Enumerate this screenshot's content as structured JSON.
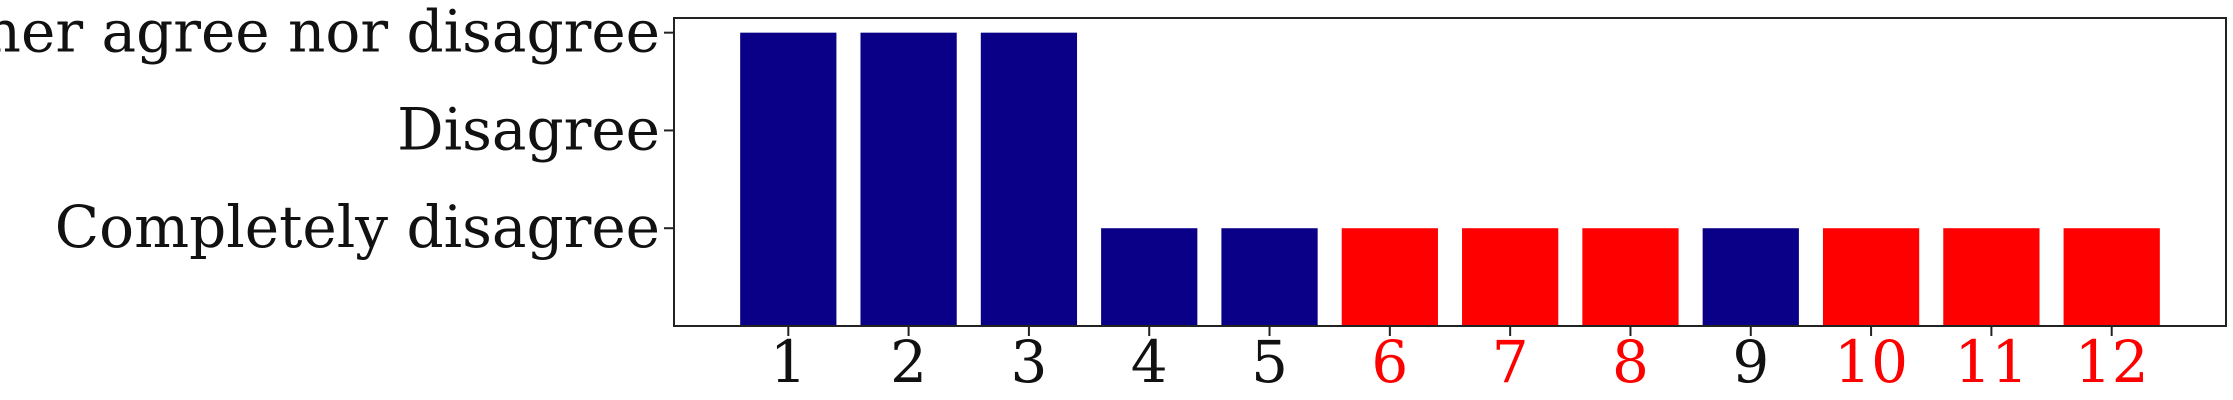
{
  "chart_data": {
    "type": "bar",
    "title": "",
    "xlabel": "",
    "ylabel": "",
    "categories": [
      "1",
      "2",
      "3",
      "4",
      "5",
      "6",
      "7",
      "8",
      "9",
      "10",
      "11",
      "12"
    ],
    "values": [
      3,
      3,
      3,
      1,
      1,
      1,
      1,
      1,
      1,
      1,
      1,
      1
    ],
    "highlight": [
      false,
      false,
      false,
      false,
      false,
      true,
      true,
      true,
      false,
      true,
      true,
      true
    ],
    "y_ticks": [
      {
        "value": 1,
        "label": "Completely disagree"
      },
      {
        "value": 2,
        "label": "Disagree"
      },
      {
        "value": 3,
        "label": "Neither agree nor disagree"
      }
    ],
    "ylim": [
      0,
      3.15
    ],
    "xlim": [
      0.05,
      12.95
    ],
    "grid": false,
    "legend": "none"
  },
  "colors": {
    "default_bar": "#0a0087",
    "highlight_bar": "#ff0000",
    "default_label": "#111111",
    "highlight_label": "#ff0000",
    "axis": "#222222"
  }
}
